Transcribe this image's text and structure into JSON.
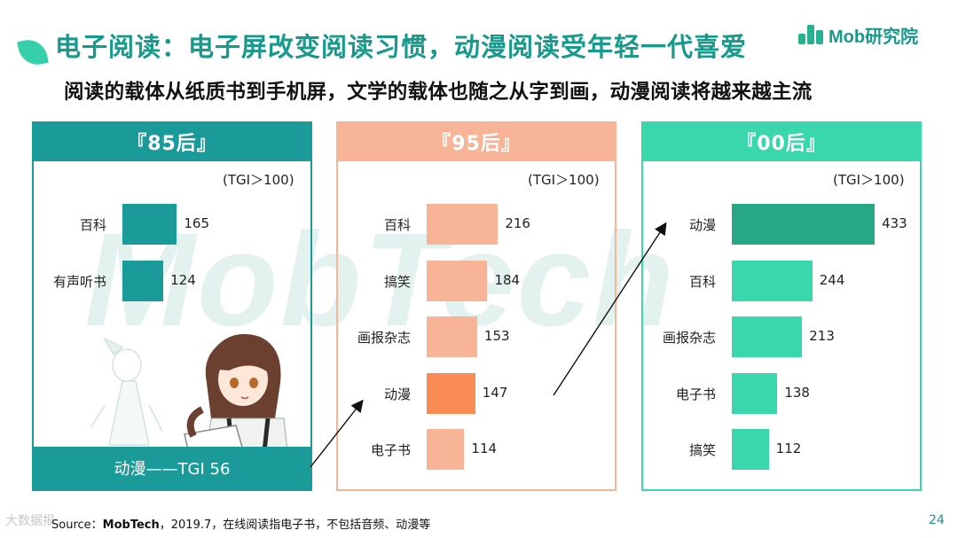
{
  "header": {
    "title": "电子阅读：电子屏改变阅读习惯，动漫阅读受年轻一代喜爱",
    "subtitle": "阅读的载体从纸质书到手机屏，文学的载体也随之从字到画，动漫阅读将越来越主流",
    "logo_text": "Mob研究院"
  },
  "watermark": "MobTech",
  "colors": {
    "brand": "#17998c",
    "panel85": "#1a9b9a",
    "panel95": "#f8b497",
    "panel95_highlight": "#fb8b55",
    "panel00": "#3ad7ad",
    "panel00_highlight": "#27a884"
  },
  "chart_data": [
    {
      "type": "bar",
      "orientation": "horizontal",
      "title": "『85后』",
      "note": "(TGI＞100)",
      "categories": [
        "百科",
        "有声听书"
      ],
      "values": [
        165,
        124
      ],
      "footer": "动漫——TGI 56"
    },
    {
      "type": "bar",
      "orientation": "horizontal",
      "title": "『95后』",
      "note": "(TGI＞100)",
      "categories": [
        "百科",
        "搞笑",
        "画报杂志",
        "动漫",
        "电子书"
      ],
      "values": [
        216,
        184,
        153,
        147,
        114
      ],
      "highlight": "动漫"
    },
    {
      "type": "bar",
      "orientation": "horizontal",
      "title": "『00后』",
      "note": "(TGI＞100)",
      "categories": [
        "动漫",
        "百科",
        "画报杂志",
        "电子书",
        "搞笑"
      ],
      "values": [
        433,
        244,
        213,
        138,
        112
      ],
      "highlight": "动漫"
    }
  ],
  "footer": {
    "source_prefix": "Source：",
    "source_brand": "MobTech",
    "source_rest": "，2019.7，在线阅读指电子书，不包括音频、动漫等",
    "page_number": "24",
    "corner_mark": "大数据报"
  }
}
